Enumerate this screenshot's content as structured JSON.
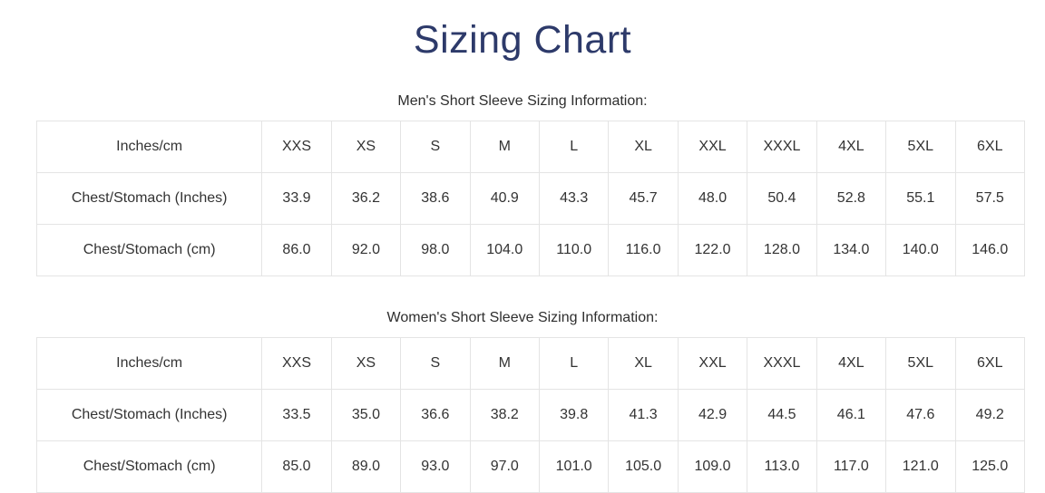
{
  "page": {
    "title": "Sizing Chart"
  },
  "colors": {
    "title": "#2d3a6a",
    "text": "#333333",
    "border": "#e4e4e4",
    "background": "#ffffff"
  },
  "tables": [
    {
      "subtitle": "Men's Short Sleeve Sizing Information:",
      "corner_label": "Inches/cm",
      "sizes": [
        "XXS",
        "XS",
        "S",
        "M",
        "L",
        "XL",
        "XXL",
        "XXXL",
        "4XL",
        "5XL",
        "6XL"
      ],
      "rows": [
        {
          "label": "Chest/Stomach (Inches)",
          "values": [
            "33.9",
            "36.2",
            "38.6",
            "40.9",
            "43.3",
            "45.7",
            "48.0",
            "50.4",
            "52.8",
            "55.1",
            "57.5"
          ]
        },
        {
          "label": "Chest/Stomach (cm)",
          "values": [
            "86.0",
            "92.0",
            "98.0",
            "104.0",
            "110.0",
            "116.0",
            "122.0",
            "128.0",
            "134.0",
            "140.0",
            "146.0"
          ]
        }
      ]
    },
    {
      "subtitle": "Women's Short Sleeve Sizing Information:",
      "corner_label": "Inches/cm",
      "sizes": [
        "XXS",
        "XS",
        "S",
        "M",
        "L",
        "XL",
        "XXL",
        "XXXL",
        "4XL",
        "5XL",
        "6XL"
      ],
      "rows": [
        {
          "label": "Chest/Stomach (Inches)",
          "values": [
            "33.5",
            "35.0",
            "36.6",
            "38.2",
            "39.8",
            "41.3",
            "42.9",
            "44.5",
            "46.1",
            "47.6",
            "49.2"
          ]
        },
        {
          "label": "Chest/Stomach (cm)",
          "values": [
            "85.0",
            "89.0",
            "93.0",
            "97.0",
            "101.0",
            "105.0",
            "109.0",
            "113.0",
            "117.0",
            "121.0",
            "125.0"
          ]
        }
      ]
    }
  ]
}
